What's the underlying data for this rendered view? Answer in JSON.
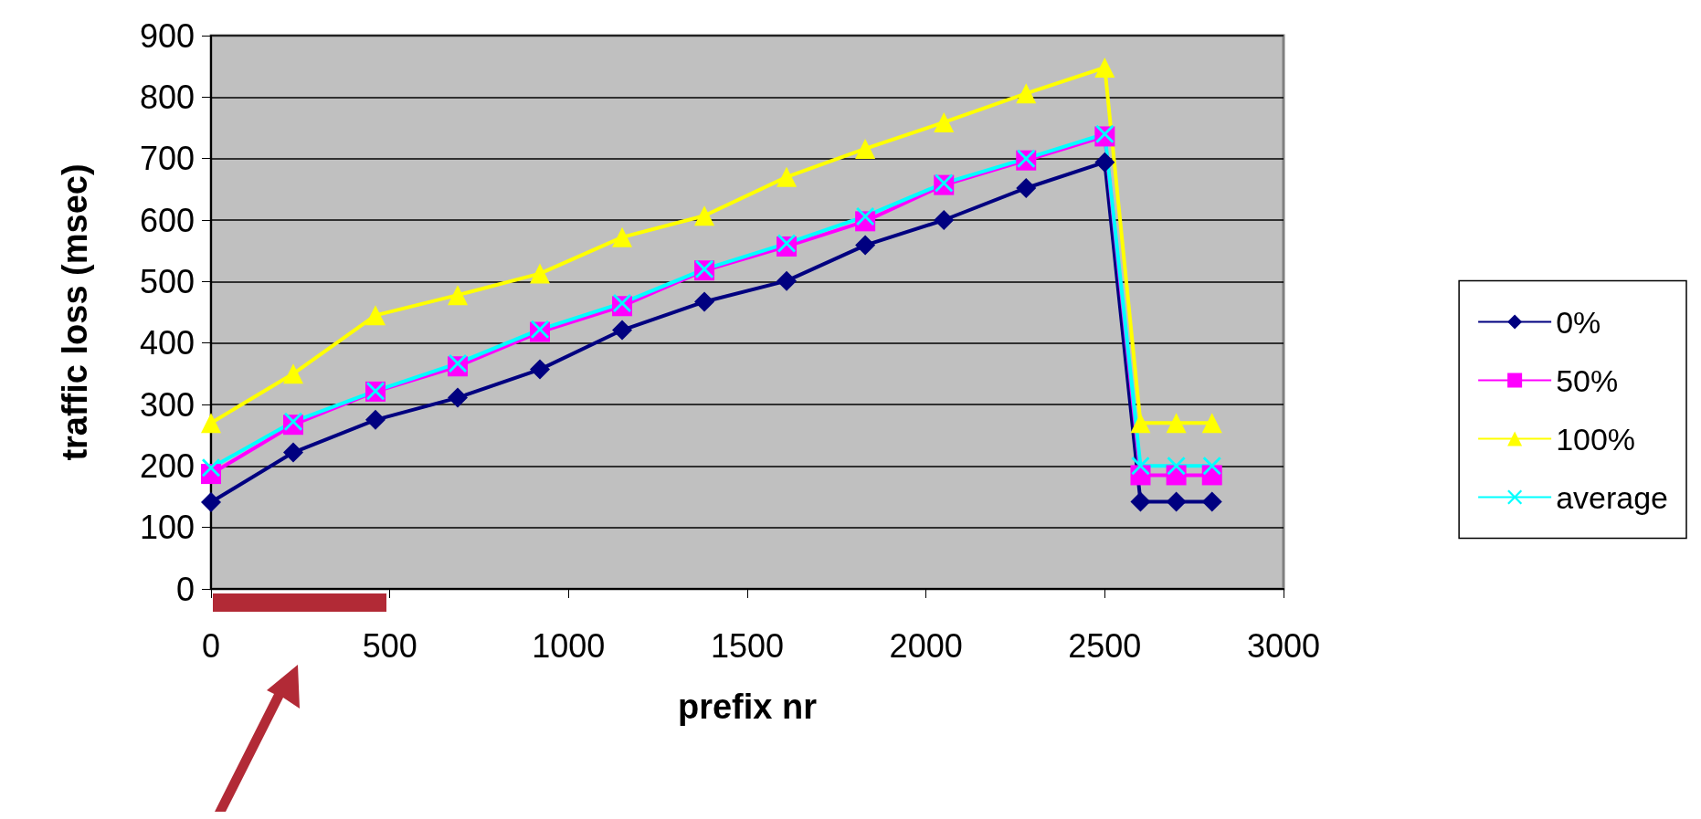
{
  "chart_data": {
    "type": "line",
    "xlabel": "prefix nr",
    "ylabel": "traffic loss (msec)",
    "xlim": [
      0,
      3000
    ],
    "xticks": [
      0,
      500,
      1000,
      1500,
      2000,
      2500,
      3000
    ],
    "ylim": [
      0,
      900
    ],
    "yticks": [
      0,
      100,
      200,
      300,
      400,
      500,
      600,
      700,
      800,
      900
    ],
    "grid": "y",
    "legend": "right",
    "series": [
      {
        "name": "0%",
        "color": "#000080",
        "marker": "diamond",
        "x": [
          0,
          230,
          460,
          690,
          920,
          1150,
          1380,
          1610,
          1830,
          2050,
          2280,
          2500,
          2600,
          2700,
          2800
        ],
        "values": [
          141,
          222,
          275,
          311,
          357,
          421,
          467,
          501,
          559,
          600,
          652,
          694,
          142,
          142,
          142
        ]
      },
      {
        "name": "50%",
        "color": "#ff00ff",
        "marker": "square",
        "x": [
          0,
          230,
          460,
          690,
          920,
          1150,
          1380,
          1610,
          1830,
          2050,
          2280,
          2500,
          2600,
          2700,
          2800
        ],
        "values": [
          187,
          267,
          321,
          362,
          418,
          460,
          518,
          557,
          598,
          657,
          697,
          736,
          185,
          185,
          185
        ]
      },
      {
        "name": "100%",
        "color": "#ffff00",
        "marker": "triangle",
        "x": [
          0,
          230,
          460,
          690,
          920,
          1150,
          1380,
          1610,
          1830,
          2050,
          2280,
          2500,
          2600,
          2700,
          2800
        ],
        "values": [
          270,
          350,
          445,
          478,
          513,
          572,
          607,
          670,
          716,
          759,
          806,
          848,
          270,
          270,
          270
        ]
      },
      {
        "name": "average",
        "color": "#00ffff",
        "marker": "cross",
        "x": [
          0,
          230,
          460,
          690,
          920,
          1150,
          1380,
          1610,
          1830,
          2050,
          2280,
          2500,
          2600,
          2700,
          2800
        ],
        "values": [
          197,
          272,
          322,
          367,
          422,
          465,
          520,
          562,
          606,
          660,
          700,
          740,
          200,
          200,
          200
        ]
      }
    ]
  }
}
